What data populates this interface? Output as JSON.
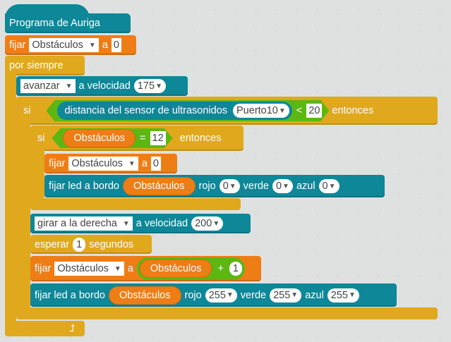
{
  "hat": {
    "label": "Programa de Auriga"
  },
  "set1": {
    "label": "fijar",
    "var": "Obstáculos",
    "to": "a",
    "value": "0"
  },
  "forever": {
    "label": "por siempre"
  },
  "move": {
    "dir": "avanzar",
    "text": "a velocidad",
    "speed": "175"
  },
  "if1": {
    "label": "si",
    "sensor": "distancia del sensor de ultrasonidos",
    "port": "Puerto10",
    "op": "<",
    "value": "20",
    "then": "entonces"
  },
  "if2": {
    "label": "si",
    "var": "Obstáculos",
    "op": "=",
    "value": "12",
    "then": "entonces"
  },
  "set2": {
    "label": "fijar",
    "var": "Obstáculos",
    "to": "a",
    "value": "0"
  },
  "led1": {
    "label": "fijar led a bordo",
    "var": "Obstáculos",
    "r_label": "rojo",
    "r": "0",
    "g_label": "verde",
    "g": "0",
    "b_label": "azul",
    "b": "0"
  },
  "turn": {
    "dir": "girar a la derecha",
    "text": "a velocidad",
    "speed": "200"
  },
  "wait": {
    "label": "esperar",
    "value": "1",
    "unit": "segundos"
  },
  "set3": {
    "label": "fijar",
    "var": "Obstáculos",
    "to": "a",
    "expr_var": "Obstáculos",
    "op": "+",
    "value": "1"
  },
  "led2": {
    "label": "fijar led a bordo",
    "var": "Obstáculos",
    "r_label": "rojo",
    "r": "255",
    "g_label": "verde",
    "g": "255",
    "b_label": "azul",
    "b": "255"
  },
  "icons": {
    "dropdown": "triangle-down-icon",
    "loop": "loop-arrow-icon"
  },
  "colors": {
    "motion": "#0e8798",
    "data": "#ee7d16",
    "control": "#e0a81c",
    "operator": "#5cb712",
    "background": "#dfe1e1"
  }
}
